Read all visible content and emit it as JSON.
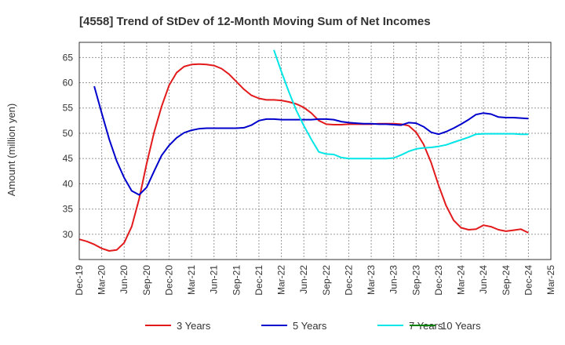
{
  "chart_data": {
    "type": "line",
    "title": "[4558]  Trend of StDev of 12-Month Moving Sum of Net Incomes",
    "ylabel": "Amount (million yen)",
    "xlabel": "",
    "ylim": [
      25,
      68
    ],
    "yticks": [
      30,
      35,
      40,
      45,
      50,
      55,
      60,
      65
    ],
    "x_tick_labels": [
      "Dec-19",
      "Mar-20",
      "Jun-20",
      "Sep-20",
      "Dec-20",
      "Mar-21",
      "Jun-21",
      "Sep-21",
      "Dec-21",
      "Mar-22",
      "Jun-22",
      "Sep-22",
      "Dec-22",
      "Mar-23",
      "Jun-23",
      "Sep-23",
      "Dec-23",
      "Mar-24",
      "Jun-24",
      "Sep-24",
      "Dec-24",
      "Mar-25"
    ],
    "x_range_months": [
      0,
      63
    ],
    "grid": true,
    "legend_position": "bottom",
    "series": [
      {
        "name": "3 Years",
        "color": "#e31a1c",
        "x": [
          0,
          1,
          2,
          3,
          4,
          5,
          6,
          7,
          8,
          9,
          10,
          11,
          12,
          13,
          14,
          15,
          16,
          17,
          18,
          19,
          20,
          21,
          22,
          23,
          24,
          25,
          26,
          27,
          28,
          29,
          30,
          31,
          32,
          33,
          34,
          35,
          36,
          37,
          38,
          39,
          40,
          41,
          42,
          43,
          44,
          45,
          46,
          47,
          48,
          49,
          50,
          51,
          52,
          53,
          54,
          55,
          56,
          57,
          58,
          59,
          60
        ],
        "values": [
          29.0,
          28.6,
          28.0,
          27.2,
          26.7,
          26.9,
          28.3,
          31.5,
          37.0,
          44.0,
          50.2,
          55.3,
          59.5,
          62.0,
          63.2,
          63.6,
          63.7,
          63.6,
          63.4,
          62.8,
          61.7,
          60.2,
          58.7,
          57.5,
          56.9,
          56.6,
          56.6,
          56.5,
          56.2,
          55.8,
          55.1,
          54.0,
          52.5,
          51.8,
          51.7,
          51.7,
          51.8,
          51.8,
          51.8,
          51.8,
          51.9,
          51.9,
          51.9,
          51.8,
          51.5,
          50.2,
          47.8,
          44.2,
          39.7,
          35.7,
          32.8,
          31.3,
          30.9,
          31.0,
          31.8,
          31.5,
          30.9,
          30.6,
          30.8,
          31.0,
          30.3
        ]
      },
      {
        "name": "5 Years",
        "color": "#0000cc",
        "x": [
          2,
          3,
          4,
          5,
          6,
          7,
          8,
          9,
          10,
          11,
          12,
          13,
          14,
          15,
          16,
          17,
          18,
          19,
          20,
          21,
          22,
          23,
          24,
          25,
          26,
          27,
          28,
          29,
          30,
          31,
          32,
          33,
          34,
          35,
          36,
          37,
          38,
          39,
          40,
          41,
          42,
          43,
          44,
          45,
          46,
          47,
          48,
          49,
          50,
          51,
          52,
          53,
          54,
          55,
          56,
          57,
          58,
          59,
          60
        ],
        "values": [
          59.3,
          54.0,
          48.8,
          44.5,
          41.2,
          38.6,
          37.8,
          39.3,
          42.5,
          45.6,
          47.6,
          49.1,
          50.1,
          50.6,
          50.9,
          51.0,
          51.0,
          51.0,
          51.0,
          51.0,
          51.1,
          51.6,
          52.5,
          52.8,
          52.8,
          52.7,
          52.7,
          52.7,
          52.7,
          52.7,
          52.8,
          52.8,
          52.7,
          52.3,
          52.1,
          52.0,
          51.9,
          51.9,
          51.8,
          51.8,
          51.7,
          51.6,
          52.1,
          52.0,
          51.3,
          50.2,
          49.8,
          50.3,
          51.0,
          51.8,
          52.7,
          53.7,
          54.0,
          53.8,
          53.2,
          53.1,
          53.1,
          53.0,
          52.9
        ]
      },
      {
        "name": "7 Years",
        "color": "#00e5e5",
        "x": [
          26,
          27,
          28,
          29,
          30,
          31,
          32,
          33,
          34,
          35,
          36,
          37,
          38,
          39,
          40,
          41,
          42,
          43,
          44,
          45,
          46,
          47,
          48,
          49,
          50,
          51,
          52,
          53,
          54,
          55,
          56,
          57,
          58,
          59,
          60
        ],
        "values": [
          66.5,
          62.2,
          58.2,
          54.5,
          51.5,
          48.8,
          46.3,
          45.9,
          45.8,
          45.2,
          45.0,
          45.0,
          45.0,
          45.0,
          45.0,
          45.0,
          45.1,
          45.7,
          46.4,
          46.9,
          47.1,
          47.2,
          47.4,
          47.7,
          48.2,
          48.7,
          49.2,
          49.8,
          49.9,
          49.9,
          49.9,
          49.9,
          49.9,
          49.8,
          49.8
        ]
      },
      {
        "name": "10 Years",
        "color": "#008000",
        "x": [],
        "values": []
      }
    ]
  }
}
